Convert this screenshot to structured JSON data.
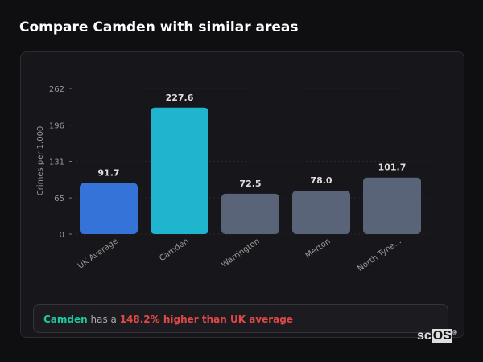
{
  "title": "Compare Camden with similar areas",
  "chart_data": {
    "type": "bar",
    "categories": [
      "UK Average",
      "Camden",
      "Warrington",
      "Merton",
      "North Tyne..."
    ],
    "values": [
      91.7,
      227.6,
      72.5,
      78.0,
      101.7
    ],
    "value_labels": [
      "91.7",
      "227.6",
      "72.5",
      "78.0",
      "101.7"
    ],
    "colors": [
      "#3573d9",
      "#1fb5cf",
      "#5a6478",
      "#5a6478",
      "#5a6478"
    ],
    "ylabel": "Crimes per 1,000",
    "yticks": [
      0,
      65,
      131,
      196,
      262
    ],
    "ylim": [
      0,
      262
    ]
  },
  "note": {
    "area": "Camden",
    "mid": " has a ",
    "highlight": "148.2% higher than UK average"
  },
  "logo": {
    "pre": "sc",
    "box": "OS",
    "mark": "®"
  }
}
